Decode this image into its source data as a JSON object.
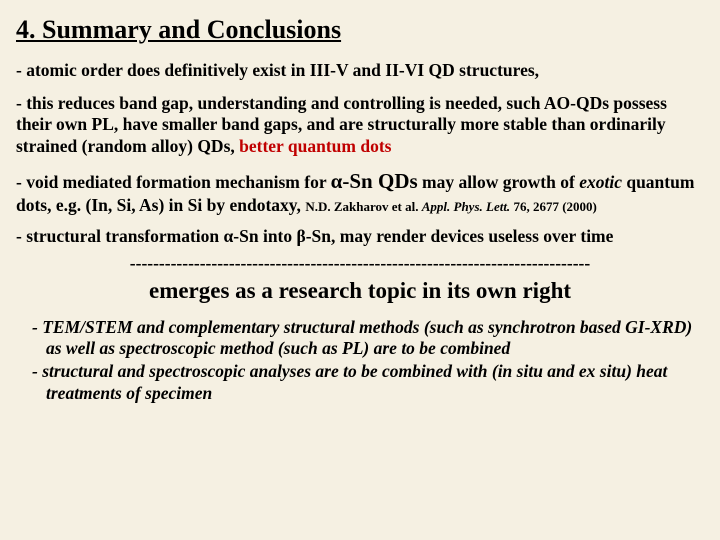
{
  "colors": {
    "background": "#f5f0e2",
    "text": "#000000",
    "accent_red": "#c00000"
  },
  "title": "4. Summary and Conclusions",
  "p1": "- atomic order does definitively exist in III-V and II-VI QD structures,",
  "p2_a": "- this reduces band gap, understanding and controlling is needed, such AO-QDs possess their own PL, have smaller band gaps, and are structurally more stable than ordinarily strained (random alloy) QDs, ",
  "p2_red": "better quantum dots",
  "p3_a": "- void mediated formation mechanism for ",
  "p3_big": "α-Sn QDs",
  "p3_b": " may allow growth of ",
  "p3_ital": "exotic",
  "p3_c": " quantum dots, e.g. (In, Si, As) in Si by endotaxy, ",
  "p3_ref_a": "N.D. Zakharov et al. ",
  "p3_ref_ital": "Appl. Phys. Lett.",
  "p3_ref_b": " 76, 2677 (2000)",
  "p4": "- structural transformation α-Sn into β-Sn, may render devices useless over time",
  "divider": "-------------------------------------------------------------------------------",
  "emerges": "emerges as a research topic in its own right",
  "b1": "- TEM/STEM and complementary structural methods (such as synchrotron based GI-XRD) as well as spectroscopic method (such as PL) are to be combined",
  "b2": "- structural and spectroscopic analyses are to be combined with (in situ and ex situ) heat treatments of specimen"
}
